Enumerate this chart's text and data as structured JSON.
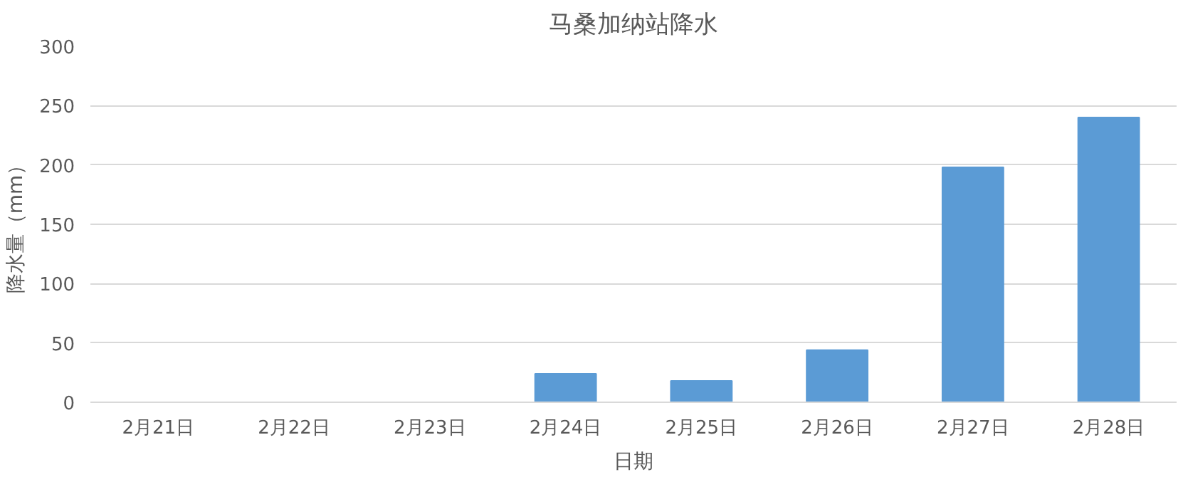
{
  "chart_data": {
    "type": "bar",
    "title": "马桑加纳站降水",
    "xlabel": "日期",
    "ylabel": "降水量（mm）",
    "categories": [
      "2月21日",
      "2月22日",
      "2月23日",
      "2月24日",
      "2月25日",
      "2月26日",
      "2月27日",
      "2月28日"
    ],
    "values": [
      0,
      0,
      0,
      24,
      18,
      44,
      198,
      240
    ],
    "color": "#5b9bd5",
    "ylim": [
      0,
      300
    ],
    "yticks": [
      0,
      50,
      100,
      150,
      200,
      250,
      300
    ],
    "grid": "y"
  }
}
